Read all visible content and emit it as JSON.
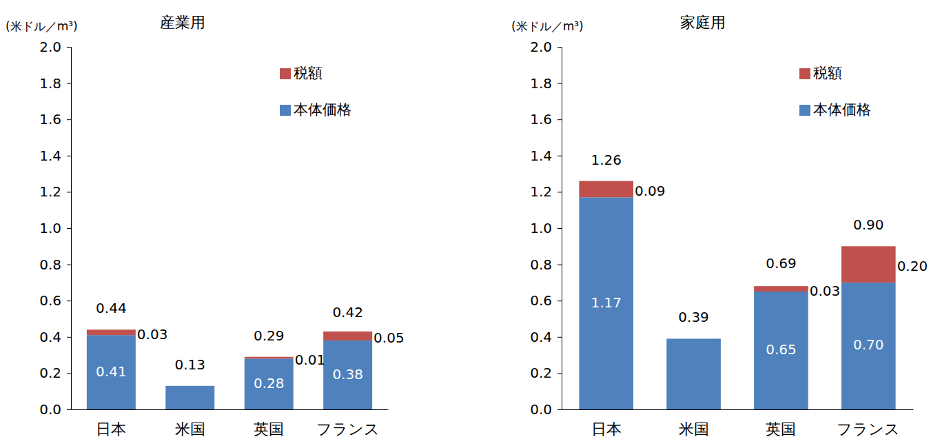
{
  "chart_data": [
    {
      "type": "bar",
      "title": "産業用",
      "y_label": "(米ドル／m³)",
      "categories": [
        "日本",
        "米国",
        "英国",
        "フランス"
      ],
      "series": [
        {
          "name": "本体価格",
          "color": "#4f81bd",
          "values": [
            0.41,
            0.13,
            0.28,
            0.38
          ],
          "value_labels": [
            "0.41",
            null,
            "0.28",
            "0.38"
          ]
        },
        {
          "name": "税額",
          "color": "#c0504d",
          "values": [
            0.03,
            null,
            0.01,
            0.05
          ],
          "value_labels": [
            "0.03",
            null,
            "0.01",
            "0.05"
          ]
        }
      ],
      "totals": [
        0.44,
        0.13,
        0.29,
        0.42
      ],
      "total_labels": [
        "0.44",
        "0.13",
        "0.29",
        "0.42"
      ],
      "stacked": true,
      "data_labels": true,
      "legend": "upper right",
      "grid": false,
      "ylim": [
        0,
        2
      ],
      "yticks": [
        {
          "value": 0,
          "label": "0.0"
        },
        {
          "value": 0.2,
          "label": "0.2"
        },
        {
          "value": 0.4,
          "label": "0.4"
        },
        {
          "value": 0.6,
          "label": "0.6"
        },
        {
          "value": 0.8,
          "label": "0.8"
        },
        {
          "value": 1,
          "label": "1.0"
        },
        {
          "value": 1.2,
          "label": "1.2"
        },
        {
          "value": 1.4,
          "label": "1.4"
        },
        {
          "value": 1.6,
          "label": "1.6"
        },
        {
          "value": 1.8,
          "label": "1.8"
        },
        {
          "value": 2,
          "label": "2.0"
        }
      ]
    },
    {
      "type": "bar",
      "title": "家庭用",
      "y_label": "(米ドル／m³)",
      "categories": [
        "日本",
        "米国",
        "英国",
        "フランス"
      ],
      "series": [
        {
          "name": "本体価格",
          "color": "#4f81bd",
          "values": [
            1.17,
            0.39,
            0.65,
            0.7
          ],
          "value_labels": [
            "1.17",
            null,
            "0.65",
            "0.70"
          ]
        },
        {
          "name": "税額",
          "color": "#c0504d",
          "values": [
            0.09,
            null,
            0.03,
            0.2
          ],
          "value_labels": [
            "0.09",
            null,
            "0.03",
            "0.20"
          ]
        }
      ],
      "totals": [
        1.26,
        0.39,
        0.69,
        0.9
      ],
      "total_labels": [
        "1.26",
        "0.39",
        "0.69",
        "0.90"
      ],
      "stacked": true,
      "data_labels": true,
      "legend": "upper right",
      "grid": false,
      "ylim": [
        0,
        2
      ],
      "yticks": [
        {
          "value": 0,
          "label": "0.0"
        },
        {
          "value": 0.2,
          "label": "0.2"
        },
        {
          "value": 0.4,
          "label": "0.4"
        },
        {
          "value": 0.6,
          "label": "0.6"
        },
        {
          "value": 0.8,
          "label": "0.8"
        },
        {
          "value": 1,
          "label": "1.0"
        },
        {
          "value": 1.2,
          "label": "1.2"
        },
        {
          "value": 1.4,
          "label": "1.4"
        },
        {
          "value": 1.6,
          "label": "1.6"
        },
        {
          "value": 1.8,
          "label": "1.8"
        },
        {
          "value": 2,
          "label": "2.0"
        }
      ]
    }
  ]
}
